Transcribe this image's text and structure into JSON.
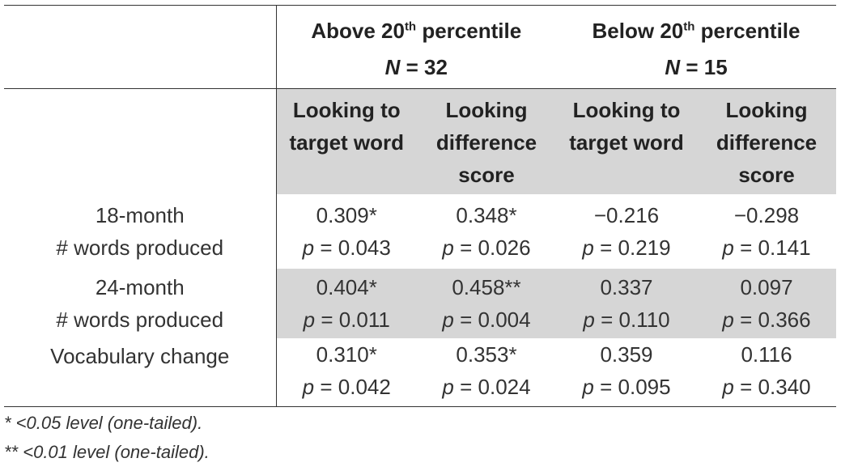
{
  "table": {
    "groups": [
      {
        "title_pre": "Above 20",
        "title_sup": "th",
        "title_post": " percentile",
        "n_label": "N",
        "n_eq": " = 32"
      },
      {
        "title_pre": "Below 20",
        "title_sup": "th",
        "title_post": " percentile",
        "n_label": "N",
        "n_eq": " = 15"
      }
    ],
    "subheaders": [
      [
        "Looking to",
        "target word"
      ],
      [
        "Looking",
        "difference",
        "score"
      ],
      [
        "Looking to",
        "target word"
      ],
      [
        "Looking",
        "difference",
        "score"
      ]
    ],
    "rows": [
      {
        "label": [
          "18-month",
          "# words produced"
        ],
        "cells": [
          {
            "value": "0.309*",
            "p": "0.043"
          },
          {
            "value": "0.348*",
            "p": "0.026"
          },
          {
            "value": "−0.216",
            "p": "0.219"
          },
          {
            "value": "−0.298",
            "p": "0.141"
          }
        ]
      },
      {
        "label": [
          "24-month",
          "# words produced"
        ],
        "cells": [
          {
            "value": "0.404*",
            "p": "0.011"
          },
          {
            "value": "0.458**",
            "p": "0.004"
          },
          {
            "value": "0.337",
            "p": "0.110"
          },
          {
            "value": "0.097",
            "p": "0.366"
          }
        ]
      },
      {
        "label": [
          "Vocabulary change"
        ],
        "cells": [
          {
            "value": "0.310*",
            "p": "0.042"
          },
          {
            "value": "0.353*",
            "p": "0.024"
          },
          {
            "value": "0.359",
            "p": "0.095"
          },
          {
            "value": "0.116",
            "p": "0.340"
          }
        ]
      }
    ],
    "p_prefix": "p",
    "p_eq": " = "
  },
  "footnotes": [
    "* <0.05 level (one-tailed).",
    "** <0.01 level (one-tailed)."
  ],
  "colors": {
    "shade": "#d6d6d6",
    "text": "#333333",
    "rule": "#333333"
  }
}
